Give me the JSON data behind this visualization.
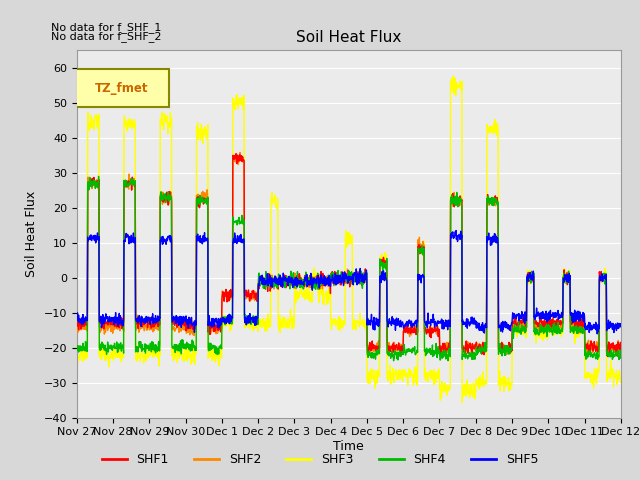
{
  "title": "Soil Heat Flux",
  "xlabel": "Time",
  "ylabel": "Soil Heat Flux",
  "ylim": [
    -40,
    65
  ],
  "yticks": [
    -40,
    -30,
    -20,
    -10,
    0,
    10,
    20,
    30,
    40,
    50,
    60
  ],
  "annotations": [
    "No data for f_SHF_1",
    "No data for f_SHF_2"
  ],
  "legend_label": "TZ_fmet",
  "legend_entries": [
    "SHF1",
    "SHF2",
    "SHF3",
    "SHF4",
    "SHF5"
  ],
  "legend_colors": [
    "#ff0000",
    "#ff8800",
    "#ffff00",
    "#00bb00",
    "#0000ff"
  ],
  "line_colors": {
    "SHF1": "#ff0000",
    "SHF2": "#ff8800",
    "SHF3": "#ffff00",
    "SHF4": "#00bb00",
    "SHF5": "#0000ff"
  },
  "bg_color": "#d8d8d8",
  "plot_bg": "#ebebeb",
  "xtick_labels": [
    "Nov 27",
    "Nov 28",
    "Nov 29",
    "Nov 30",
    "Dec 1",
    "Dec 2",
    "Dec 3",
    "Dec 4",
    "Dec 5",
    "Dec 6",
    "Dec 7",
    "Dec 8",
    "Dec 9",
    "Dec 10",
    "Dec 11",
    "Dec 12"
  ]
}
